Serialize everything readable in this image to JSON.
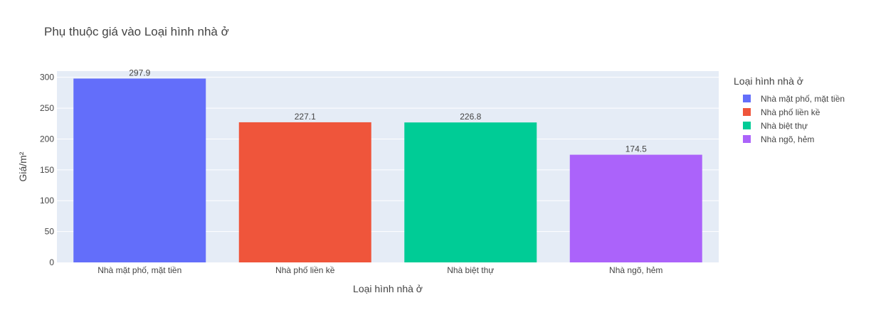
{
  "chart_data": {
    "type": "bar",
    "title": "Phụ thuộc giá vào Loại hình nhà ở",
    "xlabel": "Loại hình nhà ở",
    "ylabel": "Giá/m²",
    "ylim": [
      0,
      310
    ],
    "yticks": [
      0,
      50,
      100,
      150,
      200,
      250,
      300
    ],
    "grid": true,
    "legend": {
      "title": "Loại hình nhà ở",
      "placement": "top-right-outside"
    },
    "categories": [
      "Nhà mặt phố, mặt tiền",
      "Nhà phố liền kề",
      "Nhà biệt thự",
      "Nhà ngõ, hẻm"
    ],
    "values": [
      297.9,
      227.1,
      226.8,
      174.5
    ],
    "value_labels": [
      "297.9",
      "227.1",
      "226.8",
      "174.5"
    ],
    "series": [
      {
        "name": "Nhà mặt phố, mặt tiền",
        "color": "#636efa"
      },
      {
        "name": "Nhà phố liền kề",
        "color": "#ef553b"
      },
      {
        "name": "Nhà biệt thự",
        "color": "#00cc96"
      },
      {
        "name": "Nhà ngõ, hẻm",
        "color": "#ab63fa"
      }
    ],
    "colors": {
      "plot_background": "#e5ecf6",
      "gridline": "#ffffff"
    }
  }
}
